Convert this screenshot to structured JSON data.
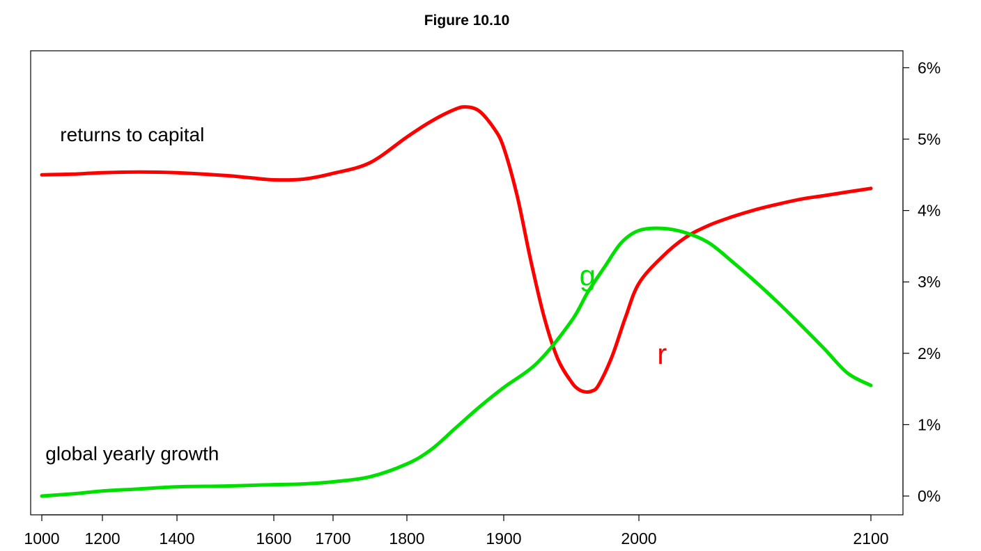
{
  "chart_data": {
    "type": "line",
    "title": "Figure 10.10",
    "xlabel": "",
    "ylabel": "",
    "x_ticks": [
      1000,
      1200,
      1400,
      1600,
      1700,
      1800,
      1900,
      2000,
      2100
    ],
    "x_tick_labels": [
      "1000",
      "1200",
      "1400",
      "1600",
      "1700",
      "1800",
      "1900",
      "2000",
      "2100"
    ],
    "y_ticks": [
      0,
      1,
      2,
      3,
      4,
      5,
      6
    ],
    "y_tick_labels": [
      "0%",
      "1%",
      "2%",
      "3%",
      "4%",
      "5%",
      "6%"
    ],
    "ylim": [
      0,
      6
    ],
    "y_axis_side": "right",
    "x_scale": "piecewise",
    "grid": false,
    "legend": "none",
    "series": [
      {
        "id": "r",
        "color": "#ff0000",
        "x": [
          1000,
          1100,
          1200,
          1300,
          1400,
          1500,
          1550,
          1600,
          1650,
          1700,
          1750,
          1800,
          1825,
          1850,
          1862,
          1875,
          1890,
          1900,
          1910,
          1920,
          1930,
          1940,
          1950,
          1955,
          1960,
          1965,
          1970,
          1980,
          1990,
          2000,
          2010,
          2020,
          2030,
          2040,
          2050,
          2060,
          2070,
          2080,
          2090,
          2100
        ],
        "values": [
          4.5,
          4.51,
          4.53,
          4.54,
          4.53,
          4.49,
          4.46,
          4.43,
          4.44,
          4.52,
          4.67,
          5.03,
          5.25,
          5.42,
          5.45,
          5.39,
          5.15,
          4.88,
          4.2,
          3.3,
          2.5,
          1.92,
          1.6,
          1.5,
          1.46,
          1.47,
          1.55,
          1.95,
          2.5,
          2.98,
          3.35,
          3.62,
          3.79,
          3.91,
          4.01,
          4.09,
          4.16,
          4.21,
          4.26,
          4.31
        ]
      },
      {
        "id": "g",
        "color": "#00e000",
        "x": [
          1000,
          1100,
          1200,
          1300,
          1400,
          1500,
          1600,
          1650,
          1700,
          1750,
          1800,
          1825,
          1850,
          1875,
          1900,
          1925,
          1950,
          1962,
          1975,
          1987,
          2000,
          2010,
          2020,
          2030,
          2040,
          2050,
          2060,
          2070,
          2080,
          2090,
          2100
        ],
        "values": [
          0.0,
          0.03,
          0.07,
          0.1,
          0.13,
          0.14,
          0.16,
          0.17,
          0.2,
          0.27,
          0.45,
          0.65,
          0.95,
          1.25,
          1.52,
          1.87,
          2.45,
          2.85,
          3.22,
          3.55,
          3.72,
          3.75,
          3.69,
          3.55,
          3.29,
          3.01,
          2.71,
          2.39,
          2.06,
          1.72,
          1.55
        ]
      }
    ],
    "annotations": [
      {
        "text": "returns to capital",
        "x": 1280,
        "y": 4.97
      },
      {
        "text": "global yearly growth",
        "x": 1280,
        "y": 0.5
      }
    ],
    "series_labels": [
      {
        "text": "g",
        "x": 1962,
        "y": 2.95,
        "series": "g"
      },
      {
        "text": "r",
        "x": 2010,
        "y": 1.85,
        "series": "r"
      }
    ]
  }
}
